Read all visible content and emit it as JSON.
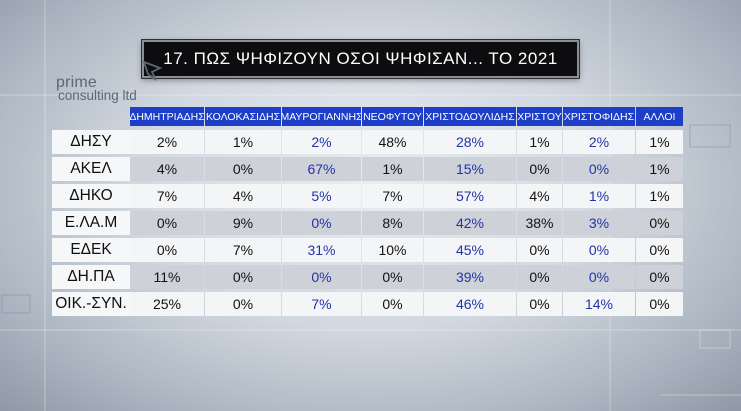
{
  "title": "17. ΠΩΣ ΨΗΦΙΖΟΥΝ ΟΣΟΙ ΨΗΦΙΣΑΝ... ΤΟ 2021",
  "logo": {
    "line1": "prime",
    "line2": "consulting ltd"
  },
  "columns": [
    "ΔΗΜΗΤΡΙΑΔΗΣ",
    "ΚΟΛΟΚΑΣΙΔΗΣ",
    "ΜΑΥΡΟΓΙΑΝΝΗΣ",
    "ΝΕΟΦΥΤΟΥ",
    "ΧΡΙΣΤΟΔΟΥΛΙΔΗΣ",
    "ΧΡΙΣΤΟΥ",
    "ΧΡΙΣΤΟΦΙΔΗΣ",
    "ΑΛΛΟΙ"
  ],
  "colors": {
    "header_bg": "#1c3ec8",
    "blue_value": "#2233a8",
    "black_value": "#111111"
  },
  "highlight_columns": [
    2,
    4,
    6
  ],
  "rows": [
    {
      "label": "ΔΗΣΥ",
      "values": [
        "2%",
        "1%",
        "2%",
        "48%",
        "28%",
        "1%",
        "2%",
        "1%"
      ]
    },
    {
      "label": "ΑΚΕΛ",
      "values": [
        "4%",
        "0%",
        "67%",
        "1%",
        "15%",
        "0%",
        "0%",
        "1%"
      ]
    },
    {
      "label": "ΔΗΚΟ",
      "values": [
        "7%",
        "4%",
        "5%",
        "7%",
        "57%",
        "4%",
        "1%",
        "1%"
      ]
    },
    {
      "label": "Ε.ΛΑ.Μ",
      "values": [
        "0%",
        "9%",
        "0%",
        "8%",
        "42%",
        "38%",
        "3%",
        "0%"
      ]
    },
    {
      "label": "ΕΔΕΚ",
      "values": [
        "0%",
        "7%",
        "31%",
        "10%",
        "45%",
        "0%",
        "0%",
        "0%"
      ]
    },
    {
      "label": "ΔΗ.ΠΑ",
      "values": [
        "11%",
        "0%",
        "0%",
        "0%",
        "39%",
        "0%",
        "0%",
        "0%"
      ]
    },
    {
      "label": "ΟΙΚ.-ΣΥΝ.",
      "values": [
        "25%",
        "0%",
        "7%",
        "0%",
        "46%",
        "0%",
        "14%",
        "0%"
      ]
    }
  ]
}
